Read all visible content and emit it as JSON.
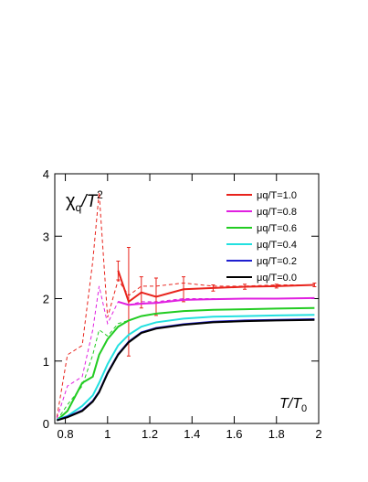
{
  "chart_data": {
    "type": "line",
    "y_label": {
      "main": "χ",
      "sub": "q",
      "rest": "/T",
      "sup": "2"
    },
    "x_label": {
      "main": "T/T",
      "sub": "0"
    },
    "x": [
      0.76,
      0.81,
      0.88,
      0.93,
      0.96,
      1.0,
      1.05,
      1.1,
      1.16,
      1.23,
      1.36,
      1.5,
      1.65,
      1.8,
      1.98
    ],
    "xlim": [
      0.75,
      2
    ],
    "xticks": [
      0.8,
      1,
      1.2,
      1.4,
      1.6,
      1.8,
      2
    ],
    "ylim": [
      0,
      4
    ],
    "yticks": [
      0,
      1,
      2,
      3,
      4
    ],
    "legend": "upper right",
    "series": [
      {
        "name": "μq/T=1.0",
        "color": "#e8231c",
        "values": [
          null,
          null,
          null,
          null,
          null,
          null,
          2.45,
          1.95,
          2.1,
          2.03,
          2.15,
          2.17,
          2.19,
          2.2,
          2.22
        ],
        "errors": [
          null,
          null,
          null,
          null,
          null,
          null,
          0.15,
          0.87,
          0.25,
          0.3,
          0.2,
          0.05,
          0.04,
          0.03,
          0.03
        ]
      },
      {
        "name": "μq/T=0.8",
        "color": "#e020e0",
        "values": [
          null,
          null,
          null,
          null,
          null,
          null,
          1.95,
          1.9,
          1.92,
          1.93,
          1.98,
          1.99,
          2.0,
          2.0,
          2.01
        ]
      },
      {
        "name": "μq/T=0.6",
        "color": "#22cc22",
        "values": [
          0.05,
          0.2,
          0.65,
          0.75,
          1.1,
          1.35,
          1.55,
          1.65,
          1.72,
          1.76,
          1.8,
          1.82,
          1.83,
          1.84,
          1.85
        ]
      },
      {
        "name": "μq/T=0.4",
        "color": "#22e0e0",
        "values": [
          0.06,
          0.12,
          0.28,
          0.45,
          0.65,
          0.95,
          1.25,
          1.42,
          1.55,
          1.62,
          1.68,
          1.71,
          1.72,
          1.73,
          1.74
        ]
      },
      {
        "name": "μq/T=0.2",
        "color": "#1f1fd0",
        "values": [
          0.05,
          0.11,
          0.21,
          0.36,
          0.51,
          0.81,
          1.11,
          1.31,
          1.46,
          1.53,
          1.59,
          1.63,
          1.65,
          1.66,
          1.67
        ]
      },
      {
        "name": "μq/T=0.0",
        "color": "#000000",
        "values": [
          0.05,
          0.1,
          0.2,
          0.35,
          0.5,
          0.8,
          1.1,
          1.3,
          1.45,
          1.52,
          1.58,
          1.62,
          1.64,
          1.65,
          1.66
        ]
      }
    ],
    "dashed": [
      {
        "color": "#e8231c",
        "values": [
          0.1,
          1.1,
          1.25,
          2.6,
          3.7,
          1.7,
          2.3,
          2.05,
          2.2,
          2.2,
          2.25,
          2.2,
          2.2,
          2.22,
          2.22
        ]
      },
      {
        "color": "#e020e0",
        "values": [
          0.08,
          0.6,
          0.75,
          1.5,
          2.2,
          1.6,
          1.95,
          1.9,
          1.95,
          1.95,
          2.0,
          2.0,
          2.0,
          2.0,
          2.01
        ]
      },
      {
        "color": "#22cc22",
        "values": [
          0.05,
          0.3,
          0.6,
          1.1,
          1.5,
          1.4,
          1.6,
          1.65,
          1.72,
          1.76,
          1.8,
          1.82,
          1.83,
          1.84,
          1.85
        ]
      }
    ]
  }
}
